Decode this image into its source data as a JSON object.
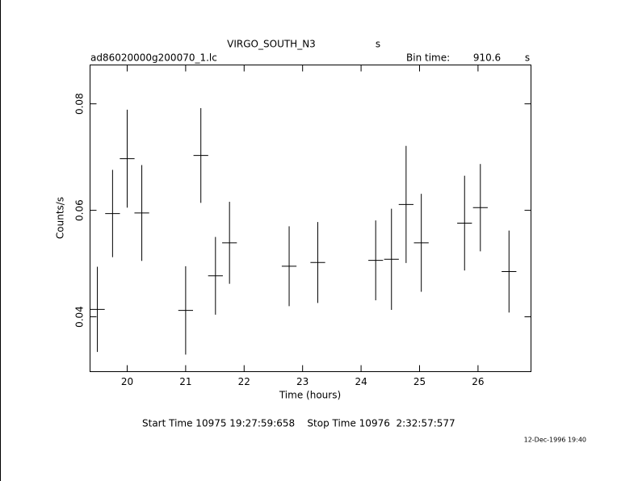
{
  "chart_data": {
    "type": "errorbar",
    "title": "VIRGO_SOUTH_N3",
    "title_unit": "s",
    "file": "ad86020000g200070_1.lc",
    "bin_time_label": "Bin time:",
    "bin_time": 910.6,
    "bin_time_unit": "s",
    "xlabel": "Time (hours)",
    "ylabel": "Counts/s",
    "footer": "Start Time 10975 19:27:59:658    Stop Time 10976  2:32:57:577",
    "timestamp": "12-Dec-1996 19:40",
    "xlim": [
      19.365,
      26.906
    ],
    "xticks": [
      20,
      21,
      22,
      23,
      24,
      25,
      26
    ],
    "ylim": [
      0.0297,
      0.0873
    ],
    "yticks": [
      0.04,
      0.06,
      0.08
    ],
    "color": "#000000",
    "x": [
      19.49,
      19.75,
      20.0,
      20.25,
      21.0,
      21.26,
      21.51,
      21.75,
      22.77,
      23.26,
      24.25,
      24.52,
      24.77,
      25.03,
      25.77,
      26.04,
      26.53
    ],
    "xerr": 0.126,
    "series": [
      {
        "values": [
          0.0414,
          0.0594,
          0.0697,
          0.0595,
          0.0412,
          0.0703,
          0.0477,
          0.0539,
          0.0495,
          0.0502,
          0.0506,
          0.0508,
          0.0611,
          0.0539,
          0.0576,
          0.0605,
          0.0485
        ],
        "errors": [
          0.008,
          0.0082,
          0.0092,
          0.009,
          0.0083,
          0.0089,
          0.0073,
          0.0077,
          0.0075,
          0.0076,
          0.0075,
          0.0095,
          0.011,
          0.0092,
          0.0089,
          0.0082,
          0.0077
        ]
      }
    ]
  }
}
